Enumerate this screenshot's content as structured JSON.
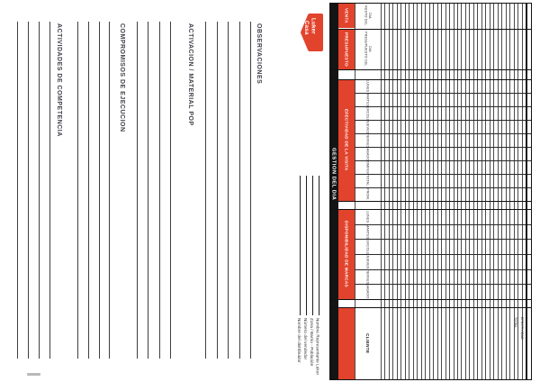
{
  "brand": {
    "word1": "Casa",
    "word2": "Luker"
  },
  "sections": [
    {
      "label": "ACTIVIDADES DE COMPETENCIA"
    },
    {
      "label": "COMPROMISOS DE EJECUCION"
    },
    {
      "label": "ACTIVACION / MATERIAL POP"
    },
    {
      "label": "OBSERVACIONES"
    }
  ],
  "fields": [
    {
      "label": "Nombre del distribuidor"
    },
    {
      "label": "Número del vendedor"
    },
    {
      "label": "Zona / Barrio - Población"
    },
    {
      "label": "Nombre Representante Luker"
    }
  ],
  "table": {
    "title": "GESTION DEL DIA",
    "groups": [
      {
        "label": "VENTA",
        "columns": [
          "RESTO DEL DIA"
        ]
      },
      {
        "label": "PRESUPUESTO",
        "columns": [
          "PRESUPUESTO DEL DIA"
        ]
      },
      {
        "label": "EFECTIVIDAD DE LA VISITA",
        "columns": [
          "LUNES",
          "MARTES",
          "MIERCOLES",
          "JUEVES",
          "VIERNES",
          "SABADO",
          "DOMINGO",
          "TOTAL",
          "PROM."
        ]
      },
      {
        "label": "DISPONIBILIDAD DE MARCAS",
        "columns": [
          "LUNES",
          "MARTES",
          "MIERCOLES",
          "JUEVES",
          "VIERNES",
          "SABADO"
        ]
      },
      {
        "label": "",
        "columns": [
          "CLIENTE"
        ]
      }
    ],
    "summary_labels": [
      "TOTAL",
      "EFECTIVIDAD"
    ]
  }
}
